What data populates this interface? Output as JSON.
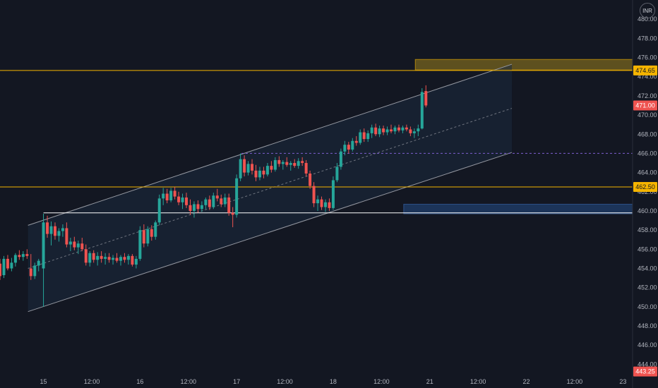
{
  "currency_badge": "INR",
  "colors": {
    "background": "#131722",
    "up": "#26a69a",
    "down": "#ef5350",
    "level_line": "#f5b400",
    "support_line": "#ffffff",
    "channel_line": "#9598a1",
    "channel_fill": "#1b2a3e",
    "supply_zone": "#6b5a1e",
    "demand_zone": "#1e3a63",
    "mid_dash": "#7d5fd1",
    "axis_text": "#b2b5be"
  },
  "price_tags": [
    {
      "label": "474.65",
      "value": 474.65,
      "bg": "#f5b400",
      "fg": "#131722"
    },
    {
      "label": "471.00",
      "value": 471.0,
      "bg": "#ef5350",
      "fg": "#ffffff"
    },
    {
      "label": "462.50",
      "value": 462.5,
      "bg": "#f5b400",
      "fg": "#131722"
    },
    {
      "label": "443.25",
      "value": 443.25,
      "bg": "#ef5350",
      "fg": "#ffffff"
    }
  ],
  "chart_data": {
    "type": "candlestick",
    "x_ticks": [
      {
        "label": "15",
        "t": 0.0
      },
      {
        "label": "12:00",
        "t": 0.5
      },
      {
        "label": "16",
        "t": 1.0
      },
      {
        "label": "12:00",
        "t": 1.5
      },
      {
        "label": "17",
        "t": 2.0
      },
      {
        "label": "12:00",
        "t": 2.5
      },
      {
        "label": "18",
        "t": 3.0
      },
      {
        "label": "12:00",
        "t": 3.5
      },
      {
        "label": "21",
        "t": 4.0
      },
      {
        "label": "12:00",
        "t": 4.5
      },
      {
        "label": "22",
        "t": 5.0
      },
      {
        "label": "12:00",
        "t": 5.5
      },
      {
        "label": "23",
        "t": 6.0
      }
    ],
    "y_ticks": [
      444,
      446,
      448,
      450,
      452,
      454,
      456,
      458,
      460,
      462,
      464,
      466,
      468,
      470,
      472,
      474,
      476,
      478,
      480
    ],
    "ylim": [
      443,
      482
    ],
    "xlim": [
      -0.45,
      6.1
    ],
    "horizontal_levels": [
      {
        "value": 474.65,
        "style": "level"
      },
      {
        "value": 462.5,
        "style": "level"
      },
      {
        "value": 459.8,
        "style": "support",
        "from_t": 0.0
      }
    ],
    "dashed_level": {
      "value": 466.0,
      "from_t": 2.05
    },
    "channel": {
      "t_start": -0.16,
      "t_end": 4.85,
      "lower_start": 449.5,
      "lower_end": 466.1,
      "upper_start": 458.5,
      "upper_end": 475.3
    },
    "zones": [
      {
        "t_from": 3.85,
        "y_low": 474.7,
        "y_high": 475.8,
        "kind": "supply"
      },
      {
        "t_from": 3.73,
        "y_low": 459.7,
        "y_high": 460.7,
        "kind": "demand"
      }
    ],
    "candles": [
      [
        -0.45,
        454.5,
        455.0,
        452.8,
        453.2
      ],
      [
        -0.41,
        453.3,
        455.3,
        453.0,
        455.0
      ],
      [
        -0.37,
        455.0,
        455.4,
        453.8,
        454.0
      ],
      [
        -0.33,
        454.0,
        455.1,
        453.7,
        454.6
      ],
      [
        -0.29,
        454.6,
        455.6,
        454.2,
        455.4
      ],
      [
        -0.25,
        455.4,
        455.9,
        454.9,
        455.2
      ],
      [
        -0.21,
        455.2,
        455.8,
        454.8,
        455.5
      ],
      [
        -0.17,
        455.5,
        456.0,
        455.0,
        455.3
      ],
      [
        -0.13,
        454.0,
        455.5,
        452.8,
        453.2
      ],
      [
        -0.09,
        453.2,
        454.6,
        452.9,
        454.3
      ],
      [
        -0.05,
        454.3,
        455.0,
        453.7,
        454.8
      ],
      [
        0.0,
        454.0,
        459.7,
        450.0,
        458.8
      ],
      [
        0.04,
        458.8,
        459.5,
        457.2,
        457.6
      ],
      [
        0.08,
        457.6,
        458.9,
        456.4,
        458.4
      ],
      [
        0.12,
        458.4,
        458.8,
        457.0,
        457.4
      ],
      [
        0.16,
        457.4,
        458.2,
        456.8,
        457.9
      ],
      [
        0.2,
        457.9,
        458.6,
        457.3,
        458.2
      ],
      [
        0.24,
        458.2,
        458.8,
        456.2,
        456.5
      ],
      [
        0.28,
        456.5,
        457.2,
        455.8,
        456.8
      ],
      [
        0.32,
        456.8,
        457.3,
        455.9,
        456.2
      ],
      [
        0.36,
        456.2,
        456.9,
        455.5,
        456.6
      ],
      [
        0.4,
        456.6,
        457.2,
        455.8,
        456.0
      ],
      [
        0.44,
        456.0,
        456.5,
        454.3,
        454.6
      ],
      [
        0.48,
        454.6,
        455.8,
        454.2,
        455.6
      ],
      [
        0.52,
        455.6,
        455.9,
        454.6,
        454.9
      ],
      [
        0.56,
        454.9,
        455.7,
        454.3,
        455.3
      ],
      [
        0.6,
        455.3,
        455.8,
        454.6,
        455.0
      ],
      [
        0.64,
        455.0,
        455.6,
        454.4,
        455.2
      ],
      [
        0.68,
        455.2,
        455.6,
        454.6,
        454.9
      ],
      [
        0.72,
        454.9,
        455.4,
        454.4,
        455.1
      ],
      [
        0.76,
        455.1,
        455.6,
        454.6,
        454.8
      ],
      [
        0.8,
        454.8,
        455.4,
        454.3,
        455.2
      ],
      [
        0.84,
        455.2,
        455.6,
        454.6,
        454.9
      ],
      [
        0.88,
        454.9,
        455.5,
        454.4,
        455.3
      ],
      [
        0.92,
        455.3,
        455.5,
        454.2,
        454.4
      ],
      [
        0.96,
        454.4,
        455.3,
        454.0,
        455.0
      ],
      [
        1.0,
        455.0,
        458.4,
        454.8,
        458.0
      ],
      [
        1.04,
        458.0,
        458.6,
        456.2,
        456.6
      ],
      [
        1.08,
        456.6,
        458.4,
        456.3,
        458.1
      ],
      [
        1.12,
        458.1,
        458.5,
        456.9,
        457.3
      ],
      [
        1.16,
        457.3,
        459.0,
        457.0,
        458.8
      ],
      [
        1.2,
        458.8,
        461.7,
        458.5,
        461.3
      ],
      [
        1.24,
        461.3,
        462.4,
        460.6,
        461.8
      ],
      [
        1.28,
        461.8,
        462.3,
        460.8,
        461.1
      ],
      [
        1.32,
        461.1,
        462.4,
        460.9,
        462.1
      ],
      [
        1.36,
        462.1,
        462.5,
        461.2,
        461.5
      ],
      [
        1.4,
        461.5,
        462.0,
        460.6,
        460.9
      ],
      [
        1.44,
        460.9,
        461.8,
        460.2,
        461.4
      ],
      [
        1.48,
        461.4,
        461.9,
        460.3,
        460.6
      ],
      [
        1.52,
        460.6,
        461.2,
        459.6,
        460.0
      ],
      [
        1.56,
        460.0,
        461.0,
        459.3,
        460.7
      ],
      [
        1.6,
        460.7,
        461.1,
        459.8,
        460.2
      ],
      [
        1.64,
        460.2,
        461.0,
        459.9,
        460.6
      ],
      [
        1.68,
        460.6,
        461.4,
        460.2,
        461.2
      ],
      [
        1.72,
        461.2,
        461.6,
        460.1,
        460.4
      ],
      [
        1.76,
        460.4,
        461.9,
        460.2,
        461.6
      ],
      [
        1.8,
        461.6,
        462.3,
        461.0,
        461.3
      ],
      [
        1.84,
        461.3,
        461.7,
        460.4,
        460.7
      ],
      [
        1.88,
        460.7,
        461.8,
        460.4,
        461.4
      ],
      [
        1.92,
        461.4,
        461.8,
        459.5,
        459.8
      ],
      [
        1.96,
        459.8,
        460.4,
        458.3,
        459.6
      ],
      [
        2.0,
        459.6,
        463.8,
        459.3,
        463.4
      ],
      [
        2.04,
        463.4,
        466.0,
        463.1,
        465.4
      ],
      [
        2.08,
        465.4,
        465.8,
        463.6,
        464.0
      ],
      [
        2.12,
        464.0,
        465.2,
        463.7,
        464.9
      ],
      [
        2.16,
        464.9,
        465.4,
        463.8,
        464.2
      ],
      [
        2.2,
        464.2,
        464.8,
        463.1,
        463.5
      ],
      [
        2.24,
        463.5,
        464.6,
        463.2,
        464.2
      ],
      [
        2.28,
        464.2,
        464.6,
        463.4,
        463.8
      ],
      [
        2.32,
        463.8,
        465.0,
        463.6,
        464.7
      ],
      [
        2.36,
        464.7,
        465.2,
        464.0,
        464.3
      ],
      [
        2.4,
        464.3,
        465.6,
        464.1,
        465.3
      ],
      [
        2.44,
        465.3,
        465.7,
        464.6,
        464.9
      ],
      [
        2.48,
        464.9,
        465.3,
        464.3,
        465.1
      ],
      [
        2.52,
        465.1,
        465.6,
        464.6,
        464.8
      ],
      [
        2.56,
        464.8,
        465.2,
        464.2,
        465.0
      ],
      [
        2.6,
        465.0,
        465.4,
        464.5,
        464.7
      ],
      [
        2.64,
        464.7,
        465.5,
        464.4,
        465.2
      ],
      [
        2.68,
        465.2,
        465.6,
        464.7,
        465.0
      ],
      [
        2.72,
        465.0,
        465.3,
        463.6,
        463.9
      ],
      [
        2.76,
        463.9,
        464.2,
        462.3,
        462.6
      ],
      [
        2.8,
        462.6,
        463.0,
        460.4,
        460.8
      ],
      [
        2.84,
        460.8,
        461.6,
        460.0,
        461.2
      ],
      [
        2.88,
        461.2,
        461.5,
        460.1,
        460.4
      ],
      [
        2.92,
        460.4,
        461.2,
        459.9,
        460.9
      ],
      [
        2.96,
        460.9,
        461.3,
        460.0,
        460.3
      ],
      [
        3.0,
        460.3,
        463.6,
        460.1,
        463.2
      ],
      [
        3.04,
        463.2,
        465.0,
        463.0,
        464.6
      ],
      [
        3.08,
        464.6,
        466.5,
        464.3,
        466.2
      ],
      [
        3.12,
        466.2,
        467.3,
        465.8,
        466.9
      ],
      [
        3.16,
        466.9,
        467.2,
        466.0,
        466.4
      ],
      [
        3.2,
        466.4,
        467.6,
        466.2,
        467.3
      ],
      [
        3.24,
        467.3,
        467.8,
        466.8,
        467.1
      ],
      [
        3.28,
        467.1,
        468.5,
        466.9,
        468.2
      ],
      [
        3.32,
        468.2,
        468.6,
        467.2,
        467.5
      ],
      [
        3.36,
        467.5,
        468.4,
        467.2,
        468.1
      ],
      [
        3.4,
        468.1,
        469.0,
        467.6,
        468.7
      ],
      [
        3.44,
        468.7,
        469.1,
        467.8,
        468.0
      ],
      [
        3.48,
        468.0,
        468.9,
        467.7,
        468.6
      ],
      [
        3.52,
        468.6,
        468.9,
        467.9,
        468.2
      ],
      [
        3.56,
        468.2,
        468.8,
        467.9,
        468.5
      ],
      [
        3.6,
        468.5,
        469.0,
        468.1,
        468.3
      ],
      [
        3.64,
        468.3,
        468.9,
        468.0,
        468.7
      ],
      [
        3.68,
        468.7,
        469.0,
        468.2,
        468.4
      ],
      [
        3.72,
        468.4,
        468.9,
        468.1,
        468.7
      ],
      [
        3.76,
        468.7,
        469.0,
        468.3,
        468.5
      ],
      [
        3.8,
        468.5,
        468.8,
        467.8,
        468.1
      ],
      [
        3.84,
        468.1,
        468.6,
        467.6,
        468.3
      ],
      [
        3.88,
        468.3,
        469.0,
        467.8,
        468.6
      ],
      [
        3.92,
        468.6,
        472.8,
        468.5,
        472.4
      ],
      [
        3.96,
        472.5,
        473.1,
        470.8,
        471.0
      ]
    ]
  }
}
